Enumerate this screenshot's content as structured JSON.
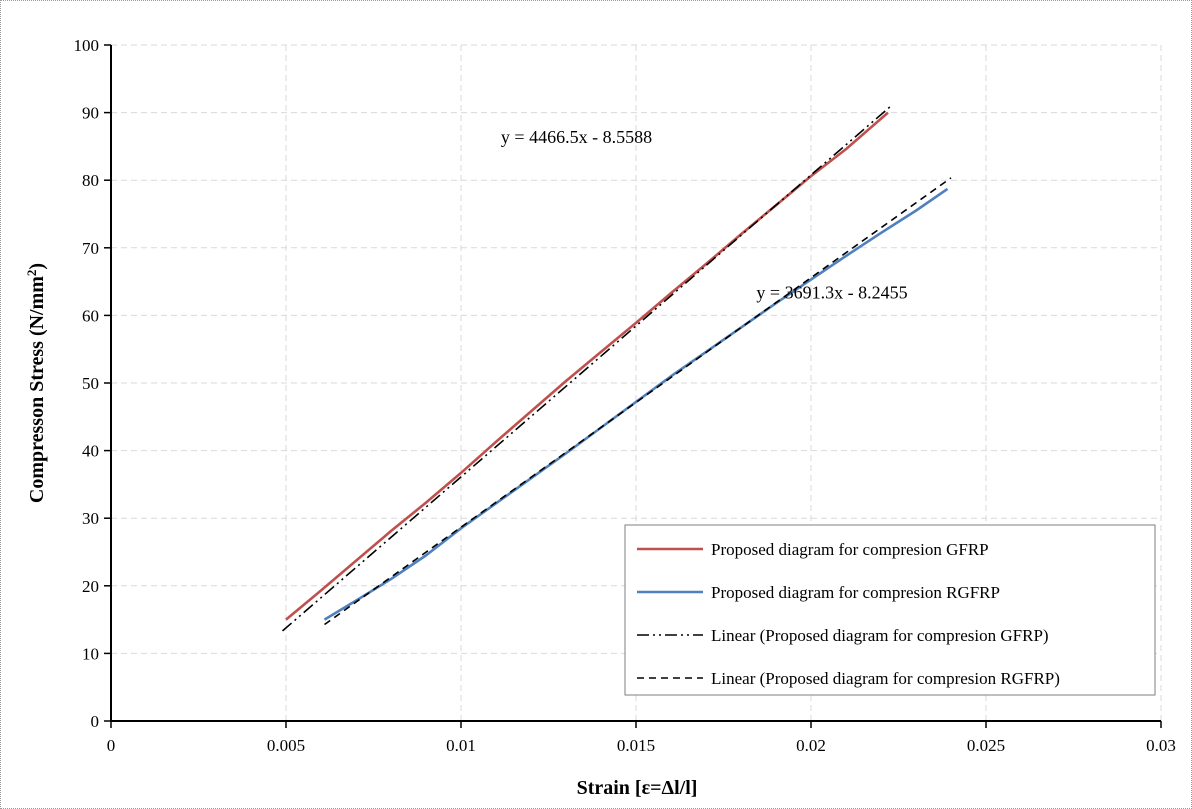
{
  "chart_data": {
    "type": "line",
    "title": "",
    "xlabel": "Strain [ε=Δl/l]",
    "ylabel_main": "Compresson Stress (N/mm",
    "ylabel_sup": "2",
    "ylabel_close": ")",
    "xlim": [
      0,
      0.03
    ],
    "ylim": [
      0,
      100
    ],
    "x_ticks": [
      0,
      0.005,
      0.01,
      0.015,
      0.02,
      0.025,
      0.03
    ],
    "x_tick_labels": [
      "0",
      "0.005",
      "0.01",
      "0.015",
      "0.02",
      "0.025",
      "0.03"
    ],
    "y_ticks": [
      0,
      10,
      20,
      30,
      40,
      50,
      60,
      70,
      80,
      90,
      100
    ],
    "y_tick_labels": [
      "0",
      "10",
      "20",
      "30",
      "40",
      "50",
      "60",
      "70",
      "80",
      "90",
      "100"
    ],
    "grid": true,
    "legend_position": "bottom-right",
    "series": [
      {
        "name": "Proposed diagram for compresion GFRP",
        "color": "#c0504d",
        "style": "solid",
        "x": [
          0.005,
          0.006,
          0.007,
          0.008,
          0.009,
          0.01,
          0.011,
          0.012,
          0.013,
          0.014,
          0.015,
          0.016,
          0.017,
          0.018,
          0.019,
          0.02,
          0.021,
          0.0222
        ],
        "y": [
          15,
          19.3,
          23.7,
          28.1,
          32.3,
          36.7,
          41.3,
          45.8,
          50.3,
          54.6,
          58.9,
          63.3,
          67.6,
          72.0,
          76.3,
          80.6,
          84.6,
          90.0
        ]
      },
      {
        "name": "Proposed diagram for compresion RGFRP",
        "color": "#4f81bd",
        "style": "solid",
        "x": [
          0.0061,
          0.007,
          0.008,
          0.009,
          0.01,
          0.011,
          0.012,
          0.013,
          0.014,
          0.015,
          0.016,
          0.017,
          0.018,
          0.019,
          0.02,
          0.021,
          0.022,
          0.023,
          0.0239
        ],
        "y": [
          15.0,
          17.8,
          21.0,
          24.5,
          28.5,
          32.2,
          35.9,
          39.6,
          43.4,
          47.2,
          51.0,
          54.6,
          58.2,
          61.8,
          65.3,
          68.8,
          72.2,
          75.5,
          78.7
        ]
      },
      {
        "name": "Linear (Proposed diagram for compresion GFRP)",
        "color": "#000000",
        "style": "dash-dot-dot",
        "slope": 4466.5,
        "intercept": -8.5588,
        "x": [
          0.0049,
          0.0223
        ]
      },
      {
        "name": "Linear (Proposed diagram for compresion RGFRP)",
        "color": "#000000",
        "style": "dashed",
        "slope": 3691.3,
        "intercept": -8.2455,
        "x": [
          0.0061,
          0.024
        ]
      }
    ],
    "annotations": [
      {
        "text": "y = 4466.5x - 8.5588",
        "x": 0.0133,
        "y": 85.5
      },
      {
        "text": "y = 3691.3x - 8.2455",
        "x": 0.0206,
        "y": 62.5
      }
    ]
  }
}
